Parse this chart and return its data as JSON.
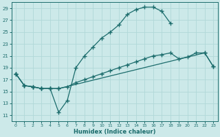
{
  "xlabel": "Humidex (Indice chaleur)",
  "bg_color": "#cce9e9",
  "line_color": "#1a6b6b",
  "grid_color": "#b0d8d8",
  "xlim": [
    -0.5,
    23.5
  ],
  "ylim": [
    10,
    30
  ],
  "yticks": [
    11,
    13,
    15,
    17,
    19,
    21,
    23,
    25,
    27,
    29
  ],
  "xticks": [
    0,
    1,
    2,
    3,
    4,
    5,
    6,
    7,
    8,
    9,
    10,
    11,
    12,
    13,
    14,
    15,
    16,
    17,
    18,
    19,
    20,
    21,
    22,
    23
  ],
  "line1_x": [
    0,
    1,
    2,
    3,
    4,
    5,
    6,
    7,
    8,
    9,
    10,
    11,
    12,
    13,
    14,
    15,
    16,
    17,
    18
  ],
  "line1_y": [
    18.0,
    16.0,
    15.8,
    15.5,
    15.5,
    11.5,
    13.5,
    19.0,
    21.0,
    22.5,
    24.0,
    25.0,
    26.2,
    28.0,
    28.8,
    29.2,
    29.2,
    28.5,
    26.5
  ],
  "line2_x": [
    0,
    1,
    2,
    3,
    4,
    5,
    6,
    7,
    8,
    9,
    10,
    11,
    12,
    13,
    14,
    15,
    16,
    17,
    18,
    19,
    20,
    21,
    22,
    23
  ],
  "line2_y": [
    18.0,
    16.0,
    15.8,
    15.5,
    15.5,
    15.5,
    15.8,
    16.5,
    17.0,
    17.5,
    18.0,
    18.5,
    19.0,
    19.5,
    20.0,
    20.5,
    21.0,
    21.2,
    21.5,
    20.5,
    20.8,
    21.5,
    21.5,
    19.2
  ],
  "line3_x": [
    0,
    1,
    2,
    3,
    4,
    5,
    22,
    23
  ],
  "line3_y": [
    18.0,
    16.0,
    15.8,
    15.5,
    15.5,
    15.5,
    21.5,
    19.2
  ]
}
